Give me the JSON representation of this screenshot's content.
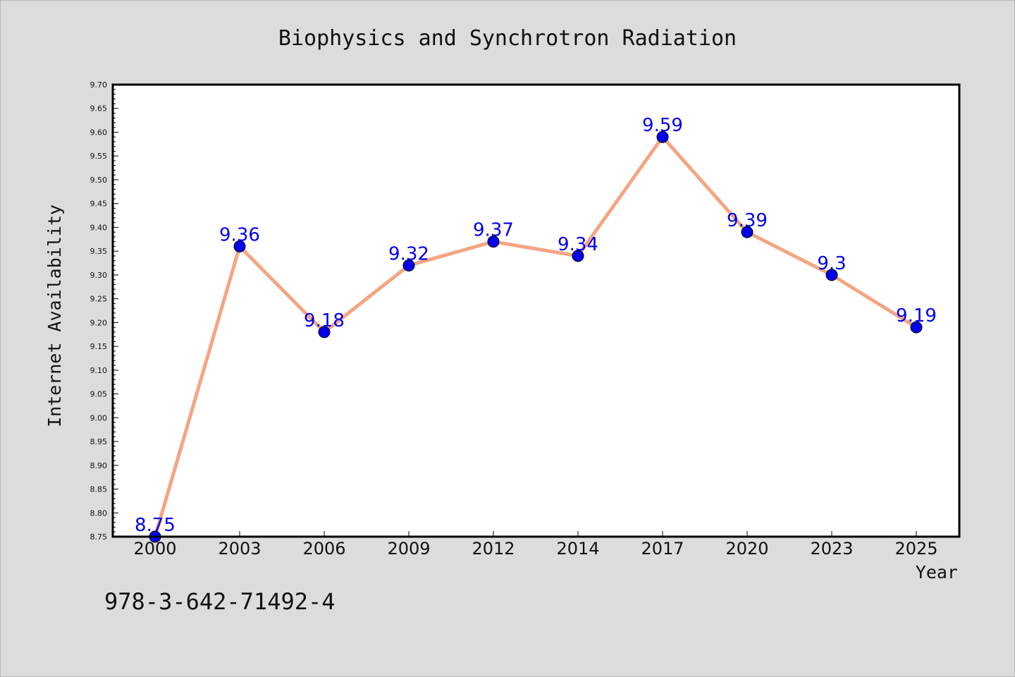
{
  "chart_data": {
    "type": "line",
    "title": "Biophysics and Synchrotron Radiation",
    "xlabel": "Year",
    "ylabel": "Internet Availability",
    "categories": [
      "2000",
      "2003",
      "2006",
      "2009",
      "2012",
      "2014",
      "2017",
      "2020",
      "2023",
      "2025"
    ],
    "series": [
      {
        "values": [
          8.75,
          9.36,
          9.18,
          9.32,
          9.37,
          9.34,
          9.59,
          9.39,
          9.3,
          9.19
        ],
        "labels": [
          "8.75",
          "9.36",
          "9.18",
          "9.32",
          "9.37",
          "9.34",
          "9.59",
          "9.39",
          "9.3",
          "9.19"
        ]
      }
    ],
    "ylim": [
      8.75,
      9.7
    ],
    "yticks": [
      "8.75",
      "8.80",
      "8.85",
      "8.90",
      "8.95",
      "9.00",
      "9.05",
      "9.10",
      "9.15",
      "9.20",
      "9.25",
      "9.30",
      "9.35",
      "9.40",
      "9.45",
      "9.50",
      "9.55",
      "9.60",
      "9.65",
      "9.70"
    ],
    "grid": false,
    "legend": "none",
    "line_color": "#f4a582",
    "marker_color": "#0000ee",
    "label_color": "#0000ee"
  },
  "footer_text": "978-3-642-71492-4"
}
